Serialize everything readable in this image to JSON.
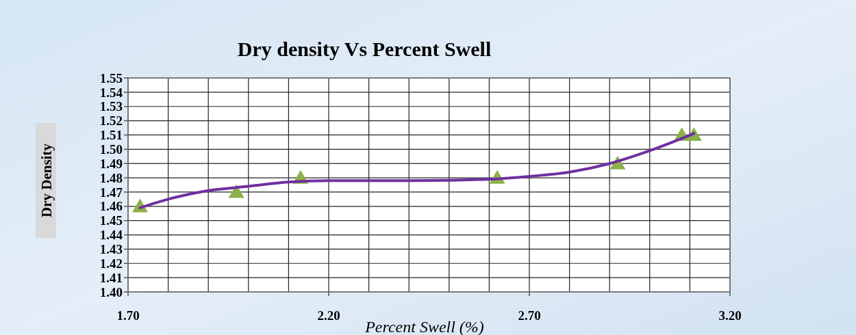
{
  "chart_data": {
    "type": "scatter",
    "title": "Dry density Vs Percent Swell",
    "xlabel": "Percent Swell (%)",
    "ylabel": "Dry Density",
    "xlim": [
      1.7,
      3.2
    ],
    "xticks": [
      {
        "value": 1.7,
        "label": "1.70"
      },
      {
        "value": 1.8,
        "label": null
      },
      {
        "value": 1.9,
        "label": null
      },
      {
        "value": 2.0,
        "label": null
      },
      {
        "value": 2.1,
        "label": null
      },
      {
        "value": 2.2,
        "label": "2.20"
      },
      {
        "value": 2.3,
        "label": null
      },
      {
        "value": 2.4,
        "label": null
      },
      {
        "value": 2.5,
        "label": null
      },
      {
        "value": 2.6,
        "label": null
      },
      {
        "value": 2.7,
        "label": "2.70"
      },
      {
        "value": 2.8,
        "label": null
      },
      {
        "value": 2.9,
        "label": null
      },
      {
        "value": 3.0,
        "label": null
      },
      {
        "value": 3.1,
        "label": null
      },
      {
        "value": 3.2,
        "label": "3.20"
      }
    ],
    "ylim": [
      1.4,
      1.55
    ],
    "yticks": [
      {
        "value": 1.4,
        "label": "1.40"
      },
      1.41,
      1.42,
      1.43,
      1.44,
      1.45,
      1.46,
      1.47,
      1.48,
      1.49,
      {
        "value": 1.5,
        "label": "1.50"
      },
      1.51,
      1.52,
      1.53,
      1.54,
      1.55
    ],
    "grid": true,
    "series": [
      {
        "marker": "triangle",
        "color": "#8db04a",
        "x": [
          1.73,
          1.97,
          2.13,
          2.62,
          2.92,
          3.08,
          3.11
        ],
        "values": [
          1.46,
          1.47,
          1.48,
          1.48,
          1.49,
          1.51,
          1.51
        ]
      },
      {
        "type": "line",
        "color": "#7030a0",
        "x": [
          1.73,
          1.8,
          1.9,
          2.0,
          2.1,
          2.2,
          2.4,
          2.6,
          2.7,
          2.8,
          2.9,
          3.0,
          3.11
        ],
        "values": [
          1.459,
          1.465,
          1.471,
          1.474,
          1.477,
          1.478,
          1.478,
          1.479,
          1.481,
          1.484,
          1.49,
          1.499,
          1.511
        ]
      }
    ]
  }
}
